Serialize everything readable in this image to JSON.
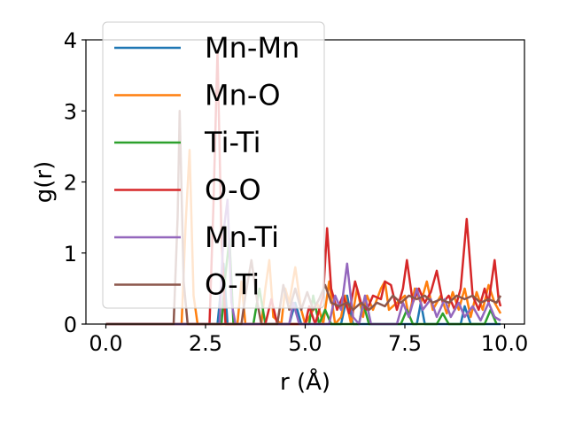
{
  "chart_data": {
    "type": "line",
    "xlabel": "r (Å)",
    "ylabel": "g(r)",
    "xlim": [
      -0.5,
      10.5
    ],
    "ylim": [
      0,
      4
    ],
    "xticks": [
      "0.0",
      "2.5",
      "5.0",
      "7.5",
      "10.0"
    ],
    "yticks": [
      "0",
      "1",
      "2",
      "3",
      "4"
    ],
    "legend_position": "upper-left",
    "grid": false,
    "series": [
      {
        "name": "Mn-Mn",
        "color": "#1f77b4",
        "points": [
          [
            0,
            0
          ],
          [
            2.8,
            0
          ],
          [
            2.95,
            0.85
          ],
          [
            3.05,
            0
          ],
          [
            4.6,
            0
          ],
          [
            4.75,
            0.3
          ],
          [
            4.9,
            0
          ],
          [
            5.9,
            0
          ],
          [
            6.05,
            0.4
          ],
          [
            6.2,
            0
          ],
          [
            7.8,
            0
          ],
          [
            7.9,
            0.3
          ],
          [
            8.0,
            0
          ],
          [
            8.9,
            0
          ],
          [
            9.0,
            0.25
          ],
          [
            9.15,
            0
          ],
          [
            9.9,
            0
          ]
        ]
      },
      {
        "name": "Mn-O",
        "color": "#ff7f0e",
        "points": [
          [
            0,
            0
          ],
          [
            1.9,
            0
          ],
          [
            2.0,
            1.4
          ],
          [
            2.1,
            2.45
          ],
          [
            2.2,
            0.4
          ],
          [
            2.3,
            0
          ],
          [
            3.3,
            0
          ],
          [
            3.4,
            0.6
          ],
          [
            3.5,
            0
          ],
          [
            3.9,
            0
          ],
          [
            4.0,
            0.5
          ],
          [
            4.1,
            0.9
          ],
          [
            4.2,
            0.1
          ],
          [
            4.4,
            0
          ],
          [
            4.5,
            0.5
          ],
          [
            4.6,
            0.3
          ],
          [
            4.75,
            0.8
          ],
          [
            4.9,
            0.2
          ],
          [
            5.0,
            0
          ],
          [
            5.3,
            0.3
          ],
          [
            5.45,
            0
          ],
          [
            5.6,
            0.6
          ],
          [
            5.75,
            0
          ],
          [
            5.9,
            0.1
          ],
          [
            6.0,
            0.4
          ],
          [
            6.15,
            0
          ],
          [
            6.3,
            0.5
          ],
          [
            6.45,
            0.1
          ],
          [
            6.55,
            0.4
          ],
          [
            6.7,
            0.2
          ],
          [
            6.9,
            0.5
          ],
          [
            7.0,
            0.6
          ],
          [
            7.1,
            0.2
          ],
          [
            7.3,
            0.3
          ],
          [
            7.5,
            0.4
          ],
          [
            7.6,
            0.1
          ],
          [
            7.75,
            0.5
          ],
          [
            7.9,
            0.3
          ],
          [
            8.05,
            0.6
          ],
          [
            8.2,
            0.2
          ],
          [
            8.4,
            0.4
          ],
          [
            8.55,
            0.15
          ],
          [
            8.7,
            0.45
          ],
          [
            8.85,
            0.2
          ],
          [
            9.0,
            0.5
          ],
          [
            9.15,
            0.1
          ],
          [
            9.3,
            0.45
          ],
          [
            9.45,
            0.2
          ],
          [
            9.6,
            0.55
          ],
          [
            9.75,
            0.3
          ],
          [
            9.9,
            0.15
          ]
        ]
      },
      {
        "name": "Ti-Ti",
        "color": "#2ca02c",
        "points": [
          [
            0,
            0
          ],
          [
            2.9,
            0
          ],
          [
            3.0,
            0.7
          ],
          [
            3.1,
            1.2
          ],
          [
            3.2,
            0
          ],
          [
            3.7,
            0
          ],
          [
            3.85,
            0.5
          ],
          [
            4.0,
            0
          ],
          [
            5.1,
            0
          ],
          [
            5.2,
            0.4
          ],
          [
            5.35,
            0
          ],
          [
            5.5,
            0.2
          ],
          [
            5.65,
            0
          ],
          [
            6.35,
            0
          ],
          [
            6.45,
            0.3
          ],
          [
            6.6,
            0
          ],
          [
            7.4,
            0
          ],
          [
            7.55,
            0.2
          ],
          [
            7.7,
            0
          ],
          [
            8.3,
            0
          ],
          [
            8.45,
            0.15
          ],
          [
            8.6,
            0
          ],
          [
            9.5,
            0
          ],
          [
            9.65,
            0.2
          ],
          [
            9.8,
            0
          ]
        ]
      },
      {
        "name": "O-O",
        "color": "#d62728",
        "points": [
          [
            0,
            0
          ],
          [
            2.6,
            0
          ],
          [
            2.7,
            1.7
          ],
          [
            2.8,
            3.85
          ],
          [
            2.9,
            1.2
          ],
          [
            3.0,
            0
          ],
          [
            4.0,
            0
          ],
          [
            4.15,
            0.35
          ],
          [
            4.3,
            0
          ],
          [
            5.0,
            0
          ],
          [
            5.1,
            0.25
          ],
          [
            5.25,
            0
          ],
          [
            5.45,
            0.4
          ],
          [
            5.55,
            1.35
          ],
          [
            5.65,
            0.5
          ],
          [
            5.8,
            0.2
          ],
          [
            5.95,
            0.4
          ],
          [
            6.1,
            0.15
          ],
          [
            6.25,
            0.6
          ],
          [
            6.4,
            0.3
          ],
          [
            6.55,
            0.2
          ],
          [
            6.7,
            0.4
          ],
          [
            6.9,
            0.35
          ],
          [
            7.0,
            0.6
          ],
          [
            7.15,
            0.55
          ],
          [
            7.3,
            0.2
          ],
          [
            7.45,
            0.5
          ],
          [
            7.55,
            0.9
          ],
          [
            7.7,
            0.3
          ],
          [
            7.85,
            0.5
          ],
          [
            8.0,
            0.3
          ],
          [
            8.15,
            0.45
          ],
          [
            8.3,
            0.75
          ],
          [
            8.45,
            0.3
          ],
          [
            8.6,
            0.4
          ],
          [
            8.75,
            0.2
          ],
          [
            8.9,
            0.5
          ],
          [
            9.05,
            1.48
          ],
          [
            9.2,
            0.4
          ],
          [
            9.35,
            0.2
          ],
          [
            9.5,
            0.5
          ],
          [
            9.6,
            0.3
          ],
          [
            9.75,
            0.9
          ],
          [
            9.85,
            0.35
          ],
          [
            9.9,
            0.25
          ]
        ]
      },
      {
        "name": "Mn-Ti",
        "color": "#9467bd",
        "points": [
          [
            0,
            0
          ],
          [
            2.85,
            0
          ],
          [
            2.95,
            1.3
          ],
          [
            3.05,
            1.75
          ],
          [
            3.15,
            0.3
          ],
          [
            3.25,
            0
          ],
          [
            4.6,
            0
          ],
          [
            4.7,
            0.3
          ],
          [
            4.85,
            0
          ],
          [
            5.6,
            0
          ],
          [
            5.75,
            0.4
          ],
          [
            5.9,
            0.2
          ],
          [
            6.05,
            0.85
          ],
          [
            6.2,
            0.1
          ],
          [
            6.35,
            0
          ],
          [
            6.5,
            0.4
          ],
          [
            6.65,
            0
          ],
          [
            7.3,
            0
          ],
          [
            7.45,
            0.3
          ],
          [
            7.6,
            0.1
          ],
          [
            7.8,
            0.5
          ],
          [
            7.95,
            0.2
          ],
          [
            8.15,
            0.35
          ],
          [
            8.3,
            0.1
          ],
          [
            8.5,
            0.35
          ],
          [
            8.65,
            0.1
          ],
          [
            8.85,
            0.3
          ],
          [
            9.0,
            0.1
          ],
          [
            9.2,
            0.25
          ],
          [
            9.4,
            0.05
          ],
          [
            9.6,
            0.3
          ],
          [
            9.75,
            0.1
          ],
          [
            9.9,
            0.05
          ]
        ]
      },
      {
        "name": "O-Ti",
        "color": "#8c564b",
        "points": [
          [
            0,
            0
          ],
          [
            1.7,
            0
          ],
          [
            1.8,
            1.5
          ],
          [
            1.85,
            3.0
          ],
          [
            1.95,
            0.6
          ],
          [
            2.05,
            0
          ],
          [
            3.4,
            0
          ],
          [
            3.5,
            0.4
          ],
          [
            3.65,
            0.9
          ],
          [
            3.8,
            0.3
          ],
          [
            3.9,
            0
          ],
          [
            4.3,
            0
          ],
          [
            4.45,
            0.55
          ],
          [
            4.6,
            0.2
          ],
          [
            4.75,
            0.5
          ],
          [
            4.9,
            0.2
          ],
          [
            5.05,
            0.45
          ],
          [
            5.2,
            0.2
          ],
          [
            5.35,
            0.35
          ],
          [
            5.5,
            0.55
          ],
          [
            5.65,
            0.3
          ],
          [
            5.85,
            0.25
          ],
          [
            6.05,
            0.3
          ],
          [
            6.2,
            0.2
          ],
          [
            6.4,
            0.3
          ],
          [
            6.6,
            0.2
          ],
          [
            6.8,
            0.3
          ],
          [
            7.0,
            0.25
          ],
          [
            7.2,
            0.4
          ],
          [
            7.4,
            0.3
          ],
          [
            7.6,
            0.4
          ],
          [
            7.8,
            0.35
          ],
          [
            8.0,
            0.4
          ],
          [
            8.2,
            0.3
          ],
          [
            8.4,
            0.35
          ],
          [
            8.6,
            0.3
          ],
          [
            8.8,
            0.4
          ],
          [
            9.0,
            0.35
          ],
          [
            9.2,
            0.4
          ],
          [
            9.4,
            0.3
          ],
          [
            9.6,
            0.35
          ],
          [
            9.8,
            0.3
          ],
          [
            9.9,
            0.4
          ]
        ]
      }
    ]
  }
}
